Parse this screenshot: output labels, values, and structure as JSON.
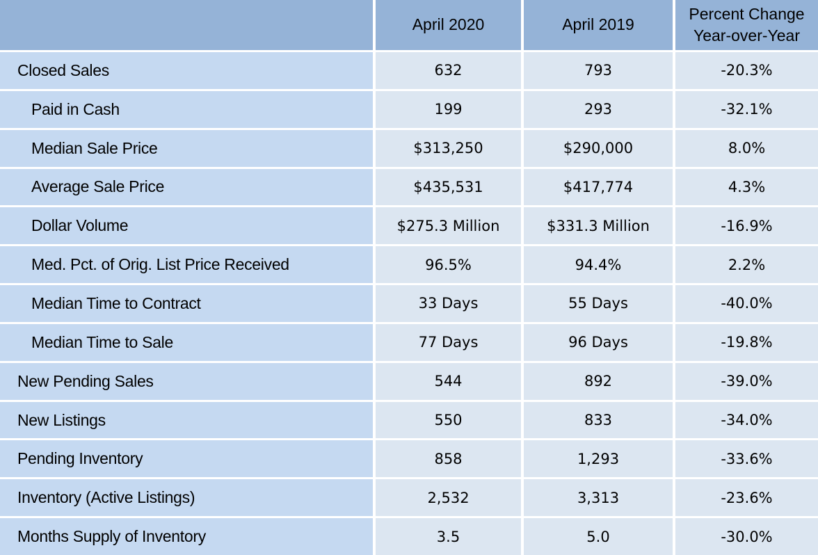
{
  "table": {
    "columns": [
      "April 2020",
      "April 2019",
      "Percent Change\nYear-over-Year"
    ],
    "rows": [
      {
        "label": "Closed Sales",
        "indent": false,
        "values": [
          "632",
          "793",
          "-20.3%"
        ]
      },
      {
        "label": "Paid in Cash",
        "indent": true,
        "values": [
          "199",
          "293",
          "-32.1%"
        ]
      },
      {
        "label": "Median Sale Price",
        "indent": true,
        "values": [
          "$313,250",
          "$290,000",
          "8.0%"
        ]
      },
      {
        "label": "Average Sale Price",
        "indent": true,
        "values": [
          "$435,531",
          "$417,774",
          "4.3%"
        ]
      },
      {
        "label": "Dollar Volume",
        "indent": true,
        "values": [
          "$275.3 Million",
          "$331.3 Million",
          "-16.9%"
        ]
      },
      {
        "label": "Med. Pct. of Orig. List Price Received",
        "indent": true,
        "values": [
          "96.5%",
          "94.4%",
          "2.2%"
        ]
      },
      {
        "label": "Median Time to Contract",
        "indent": true,
        "values": [
          "33 Days",
          "55 Days",
          "-40.0%"
        ]
      },
      {
        "label": "Median Time to Sale",
        "indent": true,
        "values": [
          "77 Days",
          "96 Days",
          "-19.8%"
        ]
      },
      {
        "label": "New Pending Sales",
        "indent": false,
        "values": [
          "544",
          "892",
          "-39.0%"
        ]
      },
      {
        "label": "New Listings",
        "indent": false,
        "values": [
          "550",
          "833",
          "-34.0%"
        ]
      },
      {
        "label": "Pending Inventory",
        "indent": false,
        "values": [
          "858",
          "1,293",
          "-33.6%"
        ]
      },
      {
        "label": "Inventory (Active Listings)",
        "indent": false,
        "values": [
          "2,532",
          "3,313",
          "-23.6%"
        ]
      },
      {
        "label": "Months Supply of Inventory",
        "indent": false,
        "values": [
          "3.5",
          "5.0",
          "-30.0%"
        ]
      }
    ]
  }
}
